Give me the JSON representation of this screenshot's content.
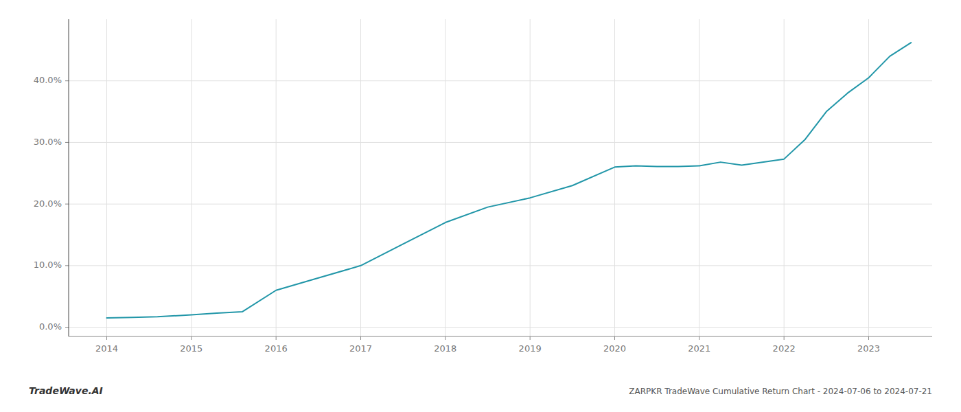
{
  "chart_data": {
    "type": "line",
    "title": "ZARPKR TradeWave Cumulative Return Chart - 2024-07-06 to 2024-07-21",
    "annotations": [
      "TradeWave.AI"
    ],
    "color": "#2196a8",
    "grid": true,
    "x": [
      2014.0,
      2014.3,
      2014.6,
      2015.0,
      2015.3,
      2015.6,
      2016.0,
      2016.5,
      2017.0,
      2017.5,
      2018.0,
      2018.5,
      2019.0,
      2019.5,
      2020.0,
      2020.25,
      2020.5,
      2020.75,
      2021.0,
      2021.25,
      2021.5,
      2022.0,
      2022.25,
      2022.5,
      2022.75,
      2023.0,
      2023.25,
      2023.5
    ],
    "values": [
      1.5,
      1.6,
      1.7,
      2.0,
      2.3,
      2.5,
      6.0,
      8.0,
      10.0,
      13.5,
      17.0,
      19.5,
      21.0,
      23.0,
      26.0,
      26.2,
      26.1,
      26.1,
      26.2,
      26.8,
      26.3,
      27.3,
      30.5,
      35.0,
      38.0,
      40.5,
      44.0,
      46.2
    ],
    "xlim": [
      2013.55,
      2023.75
    ],
    "xticks": [
      2014,
      2015,
      2016,
      2017,
      2018,
      2019,
      2020,
      2021,
      2022,
      2023
    ],
    "ylim": [
      -1.5,
      50.0
    ],
    "yticks": [
      {
        "value": 0.0,
        "label": "0.0%"
      },
      {
        "value": 10.0,
        "label": "10.0%"
      },
      {
        "value": 20.0,
        "label": "20.0%"
      },
      {
        "value": 30.0,
        "label": "30.0%"
      },
      {
        "value": 40.0,
        "label": "40.0%"
      }
    ]
  }
}
